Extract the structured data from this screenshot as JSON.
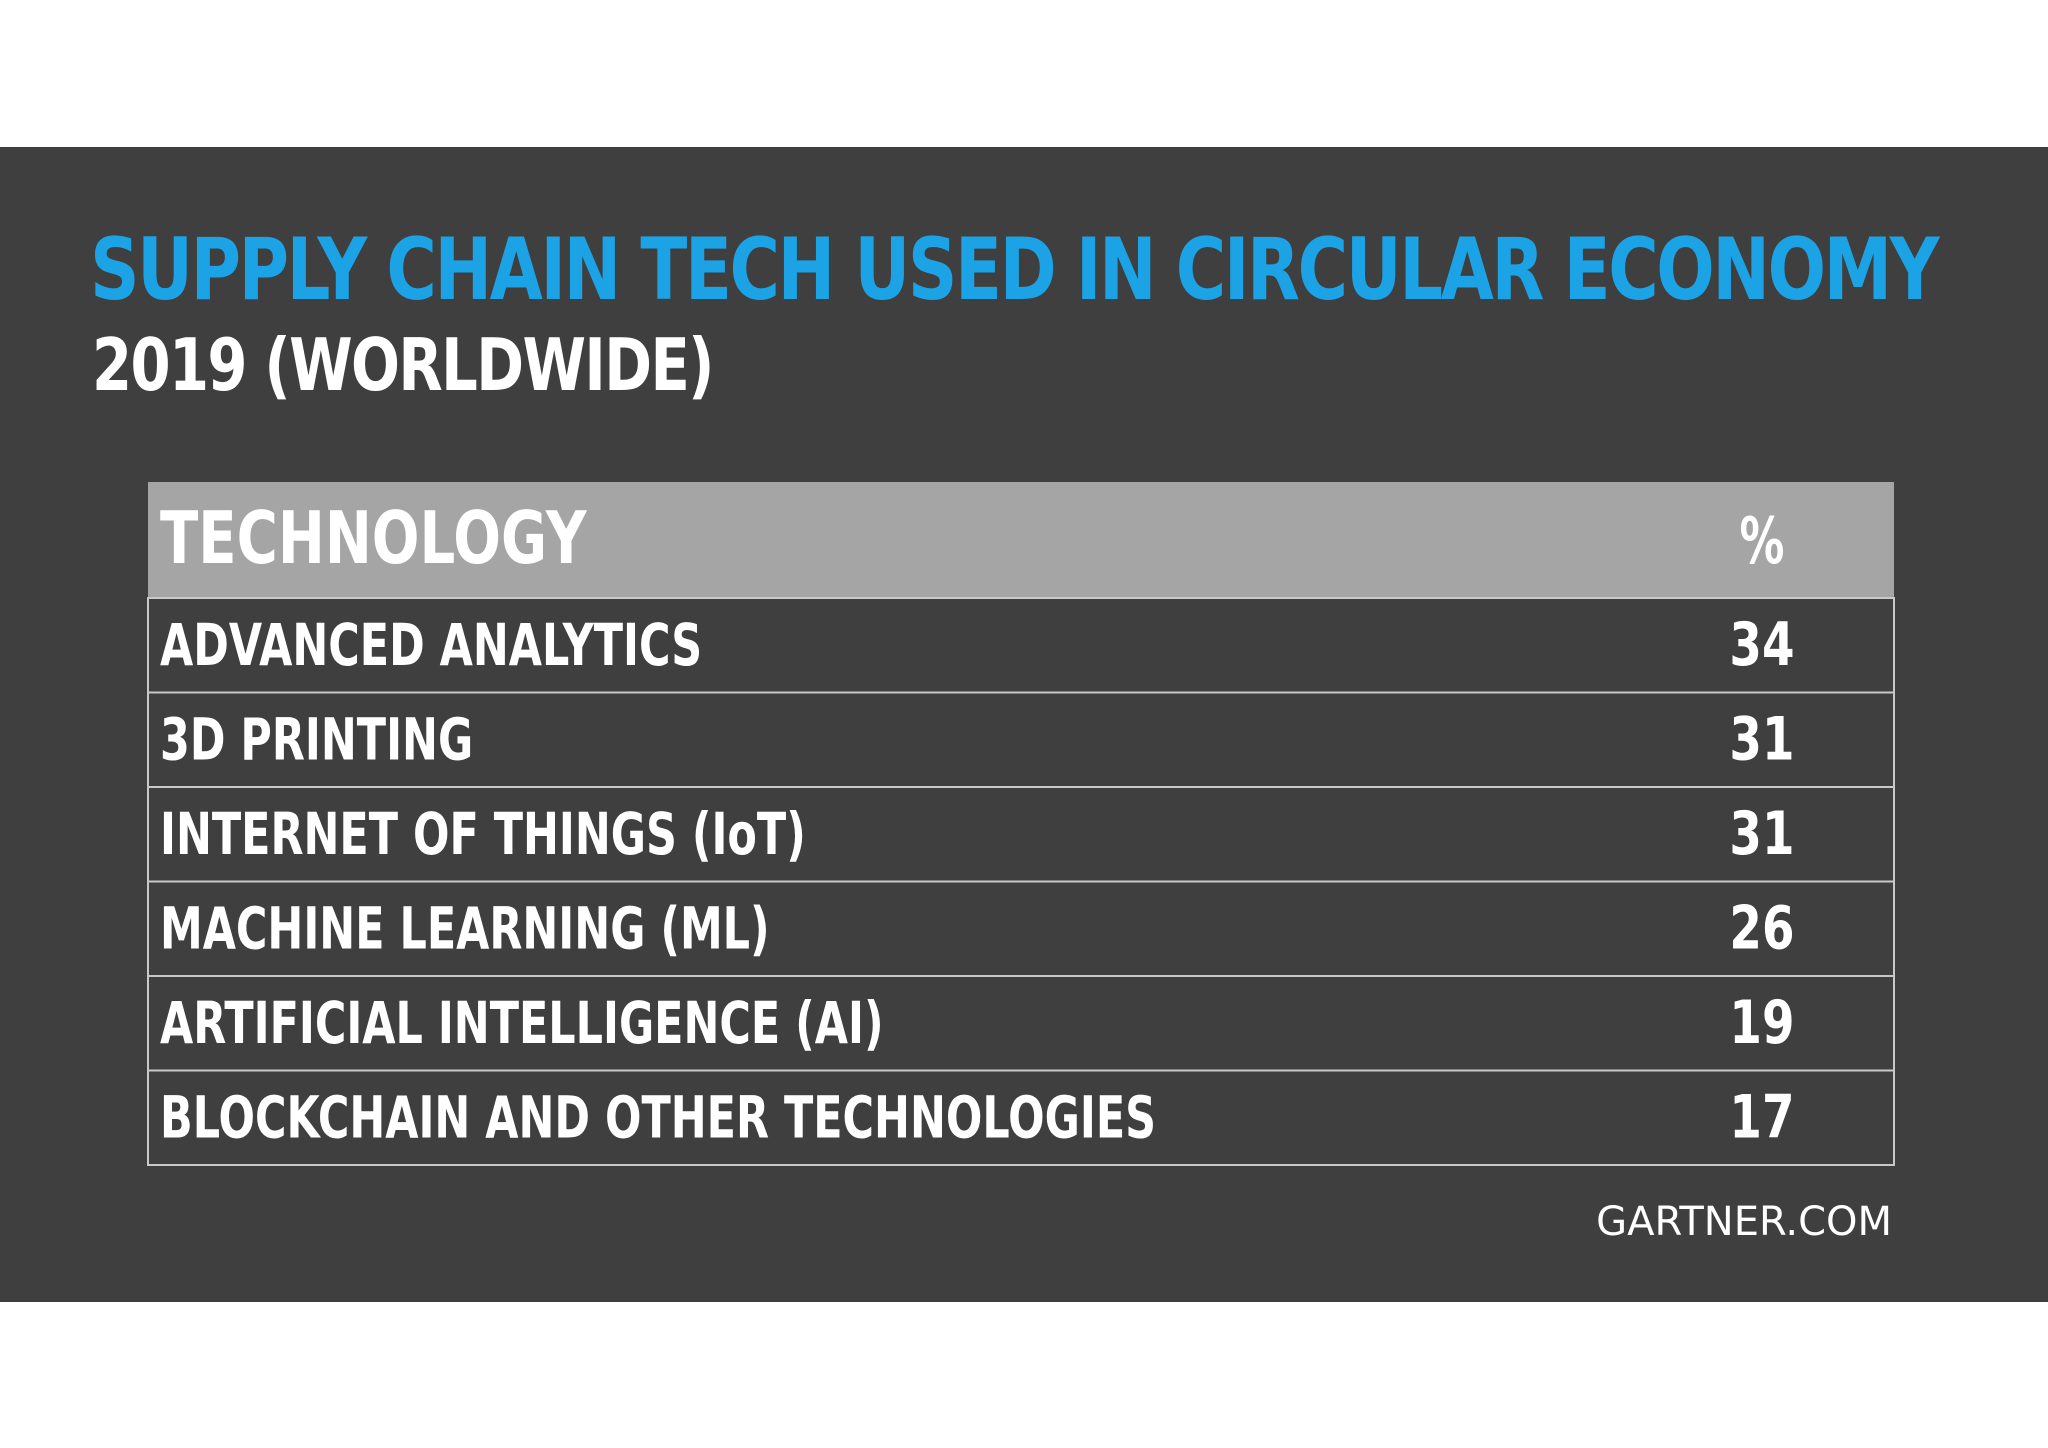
{
  "chart_data": {
    "type": "table",
    "title": "SUPPLY CHAIN TECH USED IN CIRCULAR ECONOMY",
    "subtitle": "2019 (WORLDWIDE)",
    "columns": [
      "TECHNOLOGY",
      "%"
    ],
    "rows": [
      {
        "technology": "ADVANCED ANALYTICS",
        "percent": 34
      },
      {
        "technology": "3D PRINTING",
        "percent": 31
      },
      {
        "technology": "INTERNET OF THINGS (IoT)",
        "percent": 31
      },
      {
        "technology": "MACHINE LEARNING (ML)",
        "percent": 26
      },
      {
        "technology": "ARTIFICIAL INTELLIGENCE (AI)",
        "percent": 19
      },
      {
        "technology": "BLOCKCHAIN AND OTHER TECHNOLOGIES",
        "percent": 17
      }
    ],
    "source": "GARTNER.COM"
  },
  "colors": {
    "background": "#3f3f3f",
    "title": "#1ba3e5",
    "header_fill": "#a5a5a5",
    "text": "#ffffff",
    "row_border": "#c8c8c8"
  }
}
